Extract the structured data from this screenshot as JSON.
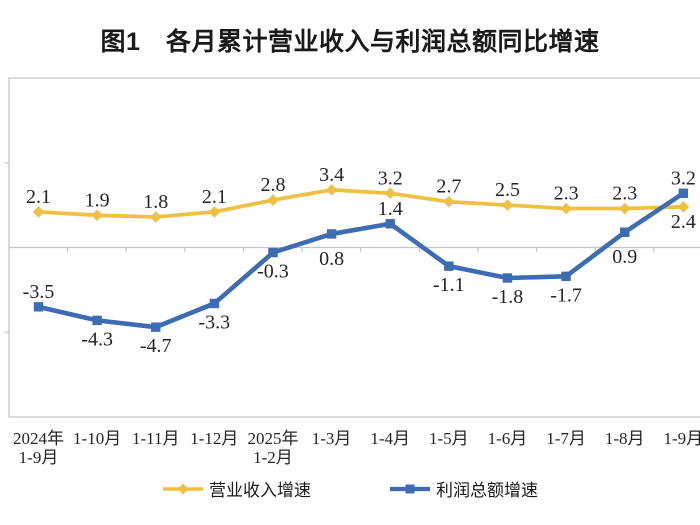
{
  "chart_data": {
    "type": "line",
    "title": "图1　各月累计营业收入与利润总额同比增速",
    "categories": [
      "2024年\n1-9月",
      "1-10月",
      "1-11月",
      "1-12月",
      "2025年\n1-2月",
      "1-3月",
      "1-4月",
      "1-5月",
      "1-6月",
      "1-7月",
      "1-8月",
      "1-9月"
    ],
    "series": [
      {
        "name": "营业收入增速",
        "color": "#EFC143",
        "marker": "diamond",
        "values": [
          2.1,
          1.9,
          1.8,
          2.1,
          2.8,
          3.4,
          3.2,
          2.7,
          2.5,
          2.3,
          2.3,
          2.4
        ],
        "label_positions": [
          "above",
          "above",
          "above",
          "above",
          "above",
          "above",
          "above",
          "above",
          "above",
          "above",
          "above",
          "below"
        ]
      },
      {
        "name": "利润总额增速",
        "color": "#3D6CB4",
        "marker": "square",
        "values": [
          -3.5,
          -4.3,
          -4.7,
          -3.3,
          -0.3,
          0.8,
          1.4,
          -1.1,
          -1.8,
          -1.7,
          0.9,
          3.2
        ],
        "label_positions": [
          "above",
          "below",
          "below",
          "below",
          "below",
          "below",
          "above",
          "below",
          "below",
          "below",
          "below",
          "above"
        ]
      }
    ],
    "ylim": [
      -10,
      10
    ],
    "yticks": [
      -5,
      5
    ],
    "zero_line": true,
    "gridlines": false,
    "legend_position": "bottom",
    "axis_color": "#c6c6c6",
    "label_color": "#262626",
    "xlabel": "",
    "ylabel": ""
  }
}
